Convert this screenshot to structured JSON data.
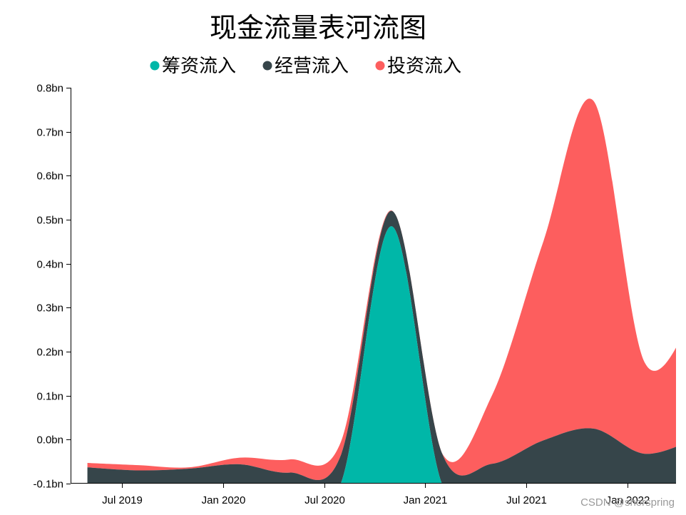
{
  "chart_data": {
    "type": "area",
    "subtype": "streamgraph",
    "title": "现金流量表河流图",
    "xlabel": "",
    "ylabel": "",
    "x": [
      "2019-04-30",
      "2019-07-31",
      "2019-10-31",
      "2020-01-31",
      "2020-04-30",
      "2020-07-31",
      "2020-10-31",
      "2021-01-31",
      "2021-04-30",
      "2021-07-31",
      "2021-10-31",
      "2022-01-31",
      "2022-04-30"
    ],
    "x_ticks": [
      "Jul 2019",
      "Jan 2020",
      "Jul 2020",
      "Jan 2021",
      "Jul 2021",
      "Jan 2022"
    ],
    "y_ticks": [
      "-0.1bn",
      "0.0bn",
      "0.1bn",
      "0.2bn",
      "0.3bn",
      "0.4bn",
      "0.5bn",
      "0.6bn",
      "0.7bn",
      "0.8bn"
    ],
    "ylim": [
      -0.1,
      0.8
    ],
    "grid": false,
    "legend_position": "top-center",
    "series": [
      {
        "name": "筹资流入",
        "color": "#00b7a8",
        "values": [
          0.0,
          0.0,
          0.0,
          0.0,
          0.0,
          0.0,
          0.585,
          0.0,
          0.0,
          0.0,
          0.0,
          0.0,
          0.0
        ]
      },
      {
        "name": "经营流入",
        "color": "#36454a",
        "values": [
          0.035,
          0.028,
          0.034,
          0.045,
          0.025,
          0.065,
          0.035,
          0.075,
          0.045,
          0.1,
          0.125,
          0.068,
          0.1
        ]
      },
      {
        "name": "投资流入",
        "color": "#fd5e5e",
        "values": [
          0.01,
          0.012,
          0.003,
          0.015,
          0.03,
          0.03,
          0.001,
          0.0,
          0.155,
          0.45,
          0.745,
          0.21,
          0.285
        ]
      }
    ],
    "baseline": "zero",
    "watermark": "CSDN @shorspring"
  }
}
